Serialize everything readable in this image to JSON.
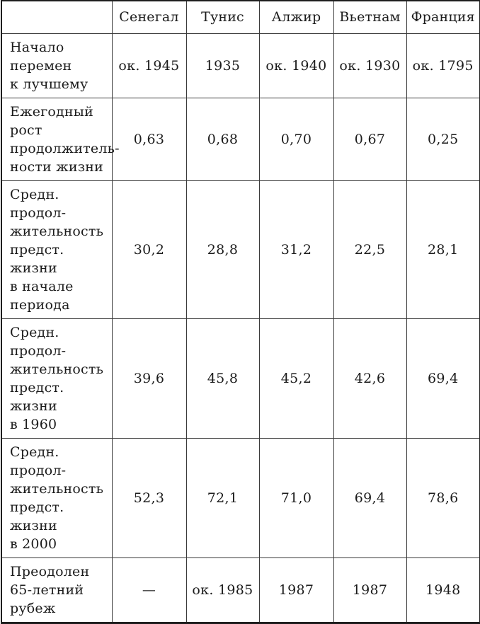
{
  "table": {
    "columns": [
      "",
      "Сенегал",
      "Тунис",
      "Алжир",
      "Вьетнам",
      "Франция"
    ],
    "rows": [
      {
        "label": "Начало\nперемен\nк лучшему",
        "values": [
          "ок. 1945",
          "1935",
          "ок. 1940",
          "ок. 1930",
          "ок. 1795"
        ]
      },
      {
        "label": "Ежегодный рост\nпродолжитель-\nности жизни",
        "values": [
          "0,63",
          "0,68",
          "0,70",
          "0,67",
          "0,25"
        ]
      },
      {
        "label": "Средн. продол-\nжительность\nпредст. жизни\nв начале периода",
        "values": [
          "30,2",
          "28,8",
          "31,2",
          "22,5",
          "28,1"
        ]
      },
      {
        "label": "Средн. продол-\nжительность\nпредст. жизни\nв 1960",
        "values": [
          "39,6",
          "45,8",
          "45,2",
          "42,6",
          "69,4"
        ]
      },
      {
        "label": "Средн. продол-\nжительность\nпредст. жизни\nв 2000",
        "values": [
          "52,3",
          "72,1",
          "71,0",
          "69,4",
          "78,6"
        ]
      },
      {
        "label": "Преодолен\n65-летний рубеж",
        "values": [
          "—",
          "ок. 1985",
          "1987",
          "1987",
          "1948"
        ]
      }
    ]
  },
  "colors": {
    "background": "#ffffff",
    "text": "#1c1c1c",
    "border_outer": "#1e1e1e",
    "border_inner": "#3a3a3a"
  }
}
